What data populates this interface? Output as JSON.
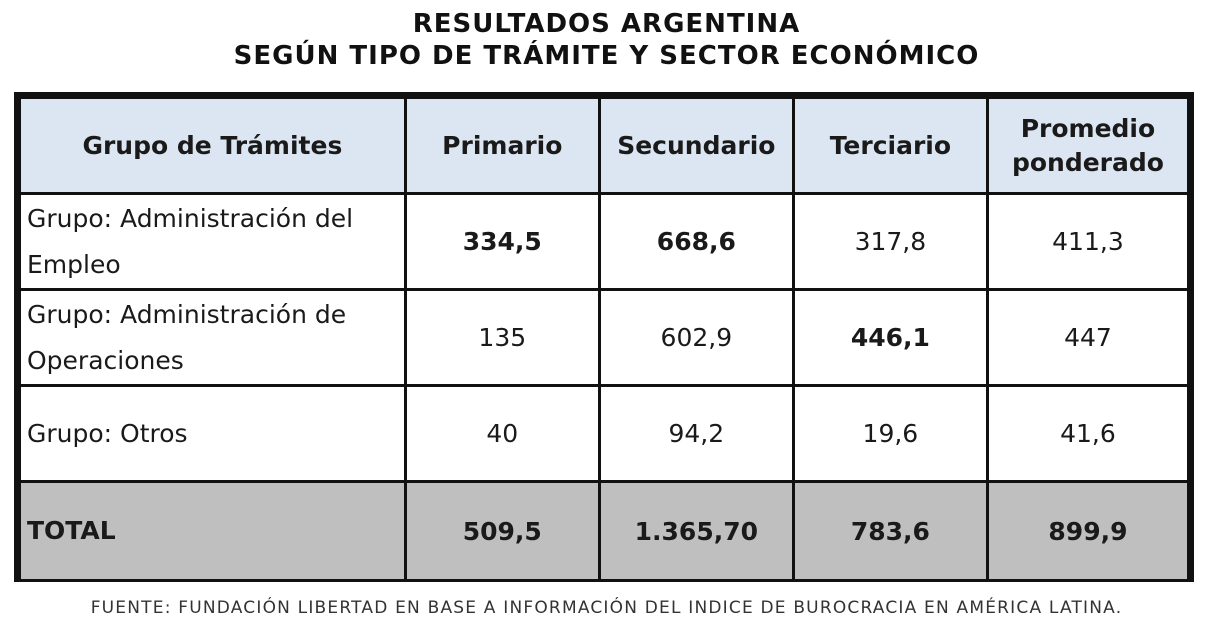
{
  "title": {
    "line1": "RESULTADOS ARGENTINA",
    "line2": "SEGÚN TIPO DE TRÁMITE Y SECTOR ECONÓMICO"
  },
  "chart_data": {
    "type": "table",
    "columns": [
      "Grupo de Trámites",
      "Primario",
      "Secundario",
      "Terciario",
      "Promedio ponderado"
    ],
    "rows": [
      {
        "label": "Grupo: Administración del Empleo",
        "values": [
          "334,5",
          "668,6",
          "317,8",
          "411,3"
        ],
        "bold": [
          true,
          true,
          false,
          false
        ]
      },
      {
        "label": "Grupo: Administración de Operaciones",
        "values": [
          "135",
          "602,9",
          "446,1",
          "447"
        ],
        "bold": [
          false,
          false,
          true,
          false
        ]
      },
      {
        "label": "Grupo: Otros",
        "values": [
          "40",
          "94,2",
          "19,6",
          "41,6"
        ],
        "bold": [
          false,
          false,
          false,
          false
        ]
      }
    ],
    "total": {
      "label": "TOTAL",
      "values": [
        "509,5",
        "1.365,70",
        "783,6",
        "899,9"
      ]
    }
  },
  "source": "FUENTE: FUNDACIÓN LIBERTAD EN BASE A INFORMACIÓN DEL INDICE DE BUROCRACIA EN AMÉRICA LATINA.",
  "colors": {
    "header_bg": "#dce6f2",
    "total_bg": "#bfbfbf",
    "border": "#111111"
  }
}
